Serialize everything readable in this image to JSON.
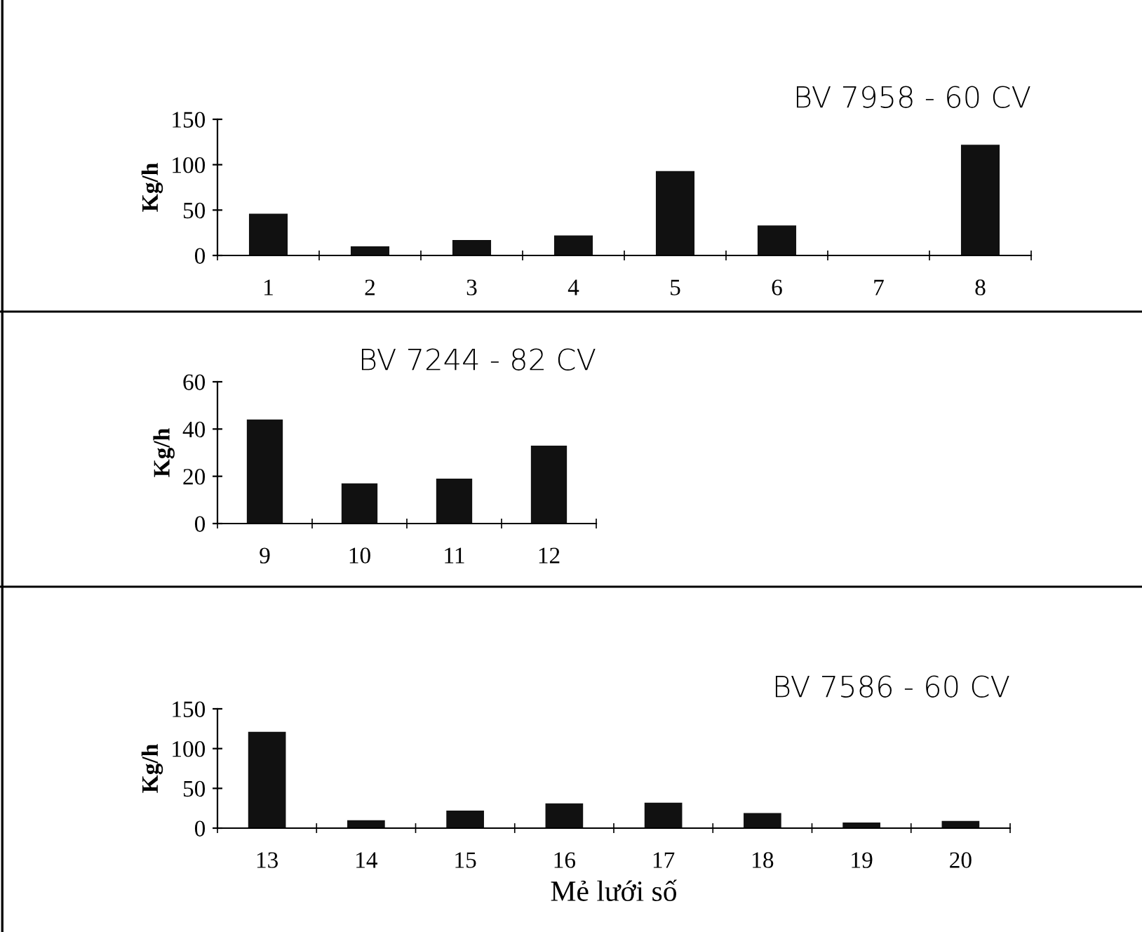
{
  "chart_data": [
    {
      "type": "bar",
      "title": "BV 7958 - 60 CV",
      "ylabel": "Kg/h",
      "categories": [
        "1",
        "2",
        "3",
        "4",
        "5",
        "6",
        "7",
        "8"
      ],
      "values": [
        46,
        10,
        17,
        22,
        93,
        33,
        0,
        122
      ],
      "color": "#111111",
      "ylim": [
        0,
        150
      ],
      "yticks": [
        0,
        50,
        100,
        150
      ],
      "grid": false,
      "legend": false
    },
    {
      "type": "bar",
      "title": "BV 7244 - 82 CV",
      "ylabel": "Kg/h",
      "categories": [
        "9",
        "10",
        "11",
        "12"
      ],
      "values": [
        44,
        17,
        19,
        33
      ],
      "color": "#111111",
      "ylim": [
        0,
        60
      ],
      "yticks": [
        0,
        20,
        40,
        60
      ],
      "grid": false,
      "legend": false
    },
    {
      "type": "bar",
      "title": "BV 7586 - 60 CV",
      "ylabel": "Kg/h",
      "xlabel": "Mẻ lưới số",
      "categories": [
        "13",
        "14",
        "15",
        "16",
        "17",
        "18",
        "19",
        "20"
      ],
      "values": [
        121,
        10,
        22,
        31,
        32,
        19,
        7,
        9
      ],
      "color": "#111111",
      "ylim": [
        0,
        150
      ],
      "yticks": [
        0,
        50,
        100,
        150
      ],
      "grid": false,
      "legend": false
    }
  ]
}
